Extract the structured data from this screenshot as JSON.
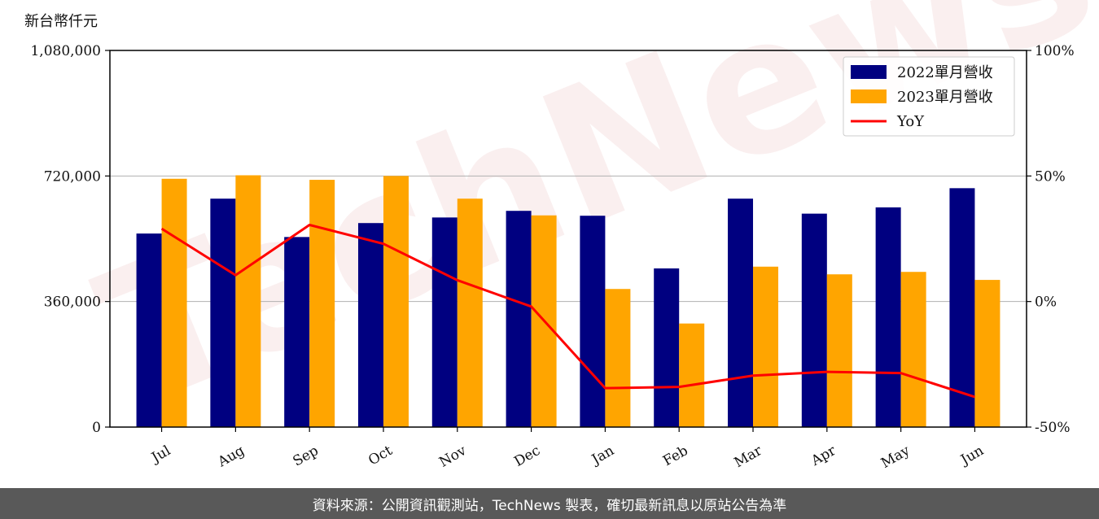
{
  "unit_label": "新台幣仟元",
  "watermark": "TechNews",
  "footer_text": "資料來源：公開資訊觀測站，TechNews 製表，確切最新訊息以原站公告為準",
  "colors": {
    "series2022": "#000080",
    "series2023": "#FFA500",
    "yoy": "#FF0000"
  },
  "chart_data": {
    "type": "bar",
    "categories": [
      "Jul",
      "Aug",
      "Sep",
      "Oct",
      "Nov",
      "Dec",
      "Jan",
      "Feb",
      "Mar",
      "Apr",
      "May",
      "Jun"
    ],
    "series": [
      {
        "name": "2022單月營收",
        "values": [
          555000,
          655000,
          545000,
          585000,
          601000,
          620000,
          606000,
          455000,
          655000,
          612000,
          630000,
          685000
        ]
      },
      {
        "name": "2023單月營收",
        "values": [
          712000,
          722000,
          709000,
          720000,
          655000,
          607000,
          396000,
          297000,
          460000,
          438000,
          445000,
          422000
        ]
      }
    ],
    "line_series": {
      "name": "YoY",
      "values": [
        29,
        10.5,
        30.5,
        23,
        8.5,
        -2,
        -34.5,
        -34,
        -29.5,
        -28,
        -28.5,
        -38
      ]
    },
    "y_left": {
      "ylim": [
        0,
        1080000
      ],
      "ticks": [
        0,
        360000,
        720000,
        1080000
      ],
      "tick_labels": [
        "0",
        "360,000",
        "720,000",
        "1,080,000"
      ]
    },
    "y_right": {
      "ylim": [
        -50,
        100
      ],
      "ticks": [
        -50,
        0,
        50,
        100
      ],
      "tick_labels": [
        "-50%",
        "0%",
        "50%",
        "100%"
      ]
    },
    "grid": "horizontal",
    "legend": "top-right"
  }
}
